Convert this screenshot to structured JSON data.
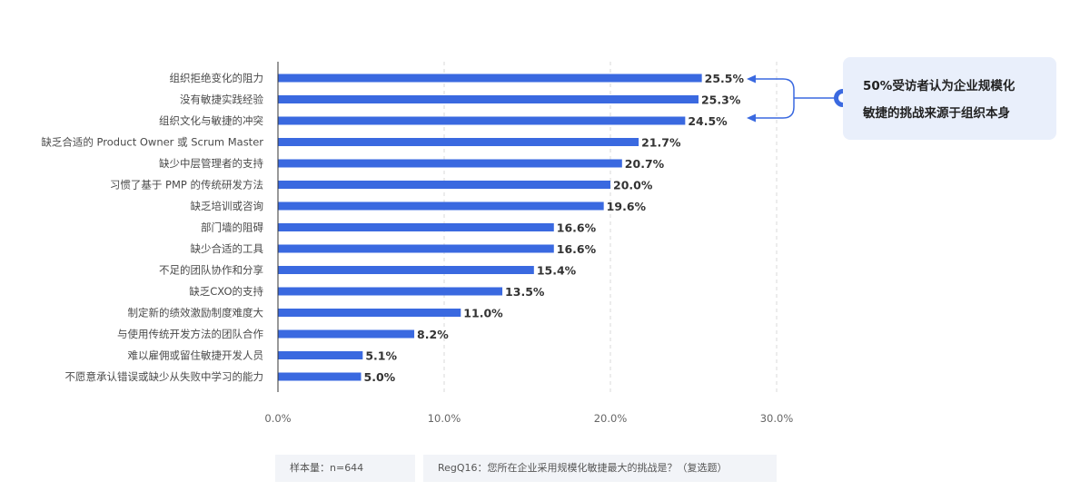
{
  "chart_data": {
    "type": "bar",
    "orientation": "horizontal",
    "categories": [
      "组织拒绝变化的阻力",
      "没有敏捷实践经验",
      "组织文化与敏捷的冲突",
      "缺乏合适的 Product Owner 或 Scrum Master",
      "缺少中层管理者的支持",
      "习惯了基于 PMP 的传统研发方法",
      "缺乏培训或咨询",
      "部门墙的阻碍",
      "缺少合适的工具",
      "不足的团队协作和分享",
      "缺乏CXO的支持",
      "制定新的绩效激励制度难度大",
      "与使用传统开发方法的团队合作",
      "难以雇佣或留住敏捷开发人员",
      "不愿意承认错误或缺少从失败中学习的能力"
    ],
    "values": [
      25.5,
      25.3,
      24.5,
      21.7,
      20.7,
      20.0,
      19.6,
      16.6,
      16.6,
      15.4,
      13.5,
      11.0,
      8.2,
      5.1,
      5.0
    ],
    "value_labels": [
      "25.5%",
      "25.3%",
      "24.5%",
      "21.7%",
      "20.7%",
      "20.0%",
      "19.6%",
      "16.6%",
      "16.6%",
      "15.4%",
      "13.5%",
      "11.0%",
      "8.2%",
      "5.1%",
      "5.0%"
    ],
    "x_ticks": [
      0,
      10,
      20,
      30
    ],
    "x_tick_labels": [
      "0.0%",
      "10.0%",
      "20.0%",
      "30.0%"
    ],
    "xlim": [
      0,
      30
    ],
    "grid": "vertical dashed",
    "bar_color": "#3a69e0"
  },
  "callout": {
    "line1": "50%受访者认为企业规模化",
    "line2": "敏捷的挑战来源于组织本身",
    "accent_color": "#3a69e0"
  },
  "footer": {
    "sample": "样本量：n=644",
    "question": "RegQ16：您所在企业采用规模化敏捷最大的挑战是？（复选题）"
  }
}
